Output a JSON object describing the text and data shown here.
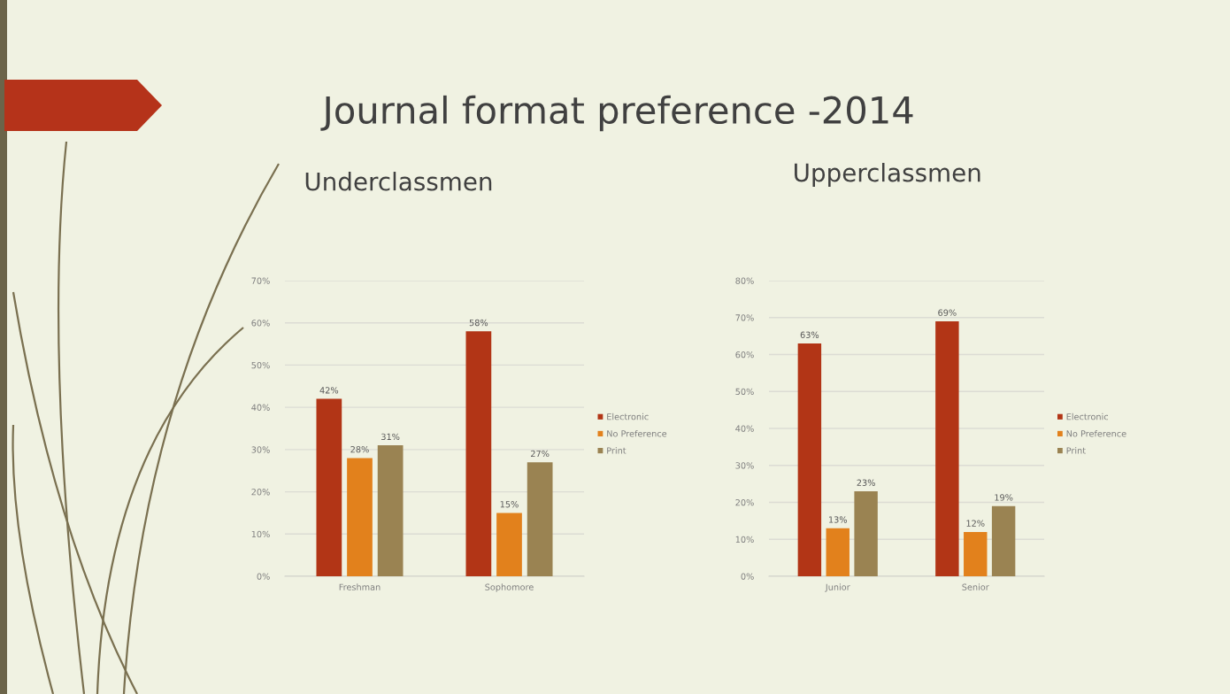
{
  "chart_data": [
    {
      "type": "bar",
      "title": "Underclassmen",
      "annotations": [
        "Journal format preference -2014"
      ],
      "categories": [
        "Freshman",
        "Sophomore"
      ],
      "series": [
        {
          "name": "Electronic",
          "color": "#b23516",
          "values": [
            42,
            58
          ],
          "value_labels": [
            "42%",
            "58%"
          ]
        },
        {
          "name": "No Preference",
          "color": "#e2811c",
          "values": [
            28,
            15
          ],
          "value_labels": [
            "28%",
            "15%"
          ]
        },
        {
          "name": "Print",
          "color": "#9a8352",
          "values": [
            31,
            27
          ],
          "value_labels": [
            "31%",
            "27%"
          ]
        }
      ],
      "ylim": [
        0,
        70
      ],
      "yticks": [
        {
          "value": 0,
          "label": "0%"
        },
        {
          "value": 10,
          "label": "10%"
        },
        {
          "value": 20,
          "label": "20%"
        },
        {
          "value": 30,
          "label": "30%"
        },
        {
          "value": 40,
          "label": "40%"
        },
        {
          "value": 50,
          "label": "50%"
        },
        {
          "value": 60,
          "label": "60%"
        },
        {
          "value": 70,
          "label": "70%"
        }
      ],
      "grid": "y",
      "legend": "right"
    },
    {
      "type": "bar",
      "title": "Upperclassmen",
      "categories": [
        "Junior",
        "Senior"
      ],
      "series": [
        {
          "name": "Electronic",
          "color": "#b23516",
          "values": [
            63,
            69
          ],
          "value_labels": [
            "63%",
            "69%"
          ]
        },
        {
          "name": "No Preference",
          "color": "#e2811c",
          "values": [
            13,
            12
          ],
          "value_labels": [
            "13%",
            "12%"
          ]
        },
        {
          "name": "Print",
          "color": "#9a8352",
          "values": [
            23,
            19
          ],
          "value_labels": [
            "23%",
            "19%"
          ]
        }
      ],
      "ylim": [
        0,
        80
      ],
      "yticks": [
        {
          "value": 0,
          "label": "0%"
        },
        {
          "value": 10,
          "label": "10%"
        },
        {
          "value": 20,
          "label": "20%"
        },
        {
          "value": 30,
          "label": "30%"
        },
        {
          "value": 40,
          "label": "40%"
        },
        {
          "value": 50,
          "label": "50%"
        },
        {
          "value": 60,
          "label": "60%"
        },
        {
          "value": 70,
          "label": "70%"
        },
        {
          "value": 80,
          "label": "80%"
        }
      ],
      "grid": "y",
      "legend": "right"
    }
  ]
}
